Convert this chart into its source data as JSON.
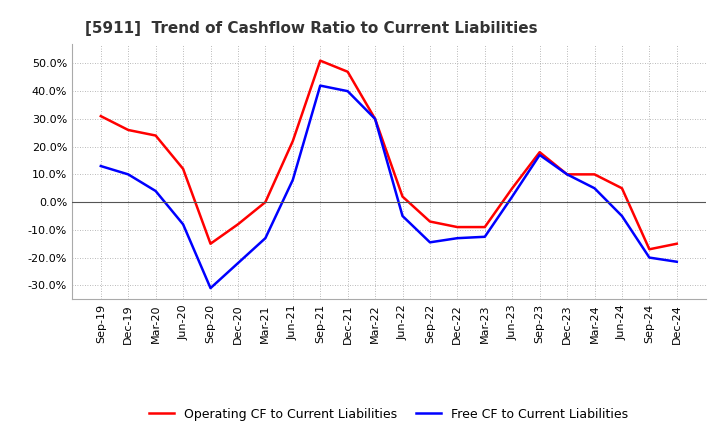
{
  "title": "[5911]  Trend of Cashflow Ratio to Current Liabilities",
  "x_labels": [
    "Sep-19",
    "Dec-19",
    "Mar-20",
    "Jun-20",
    "Sep-20",
    "Dec-20",
    "Mar-21",
    "Jun-21",
    "Sep-21",
    "Dec-21",
    "Mar-22",
    "Jun-22",
    "Sep-22",
    "Dec-22",
    "Mar-23",
    "Jun-23",
    "Sep-23",
    "Dec-23",
    "Mar-24",
    "Jun-24",
    "Sep-24",
    "Dec-24"
  ],
  "operating_cf_full": [
    31.0,
    26.0,
    24.0,
    12.0,
    -15.0,
    -8.0,
    0.0,
    22.0,
    51.0,
    47.0,
    30.0,
    2.0,
    -7.0,
    -9.0,
    -9.0,
    5.0,
    18.0,
    10.0,
    10.0,
    5.0,
    -17.0,
    -15.0
  ],
  "free_cf_full": [
    13.0,
    10.0,
    4.0,
    -8.0,
    -31.0,
    -22.0,
    -13.0,
    8.0,
    42.0,
    40.0,
    30.0,
    -5.0,
    -14.5,
    -13.0,
    -12.5,
    2.0,
    17.0,
    10.0,
    5.0,
    -5.0,
    -20.0,
    -21.5
  ],
  "ylim": [
    -35,
    57
  ],
  "yticks": [
    -30,
    -20,
    -10,
    0,
    10,
    20,
    30,
    40,
    50
  ],
  "operating_color": "#FF0000",
  "free_color": "#0000FF",
  "background_color": "#FFFFFF",
  "grid_color": "#999999",
  "title_fontsize": 11,
  "tick_fontsize": 8,
  "legend_fontsize": 9
}
